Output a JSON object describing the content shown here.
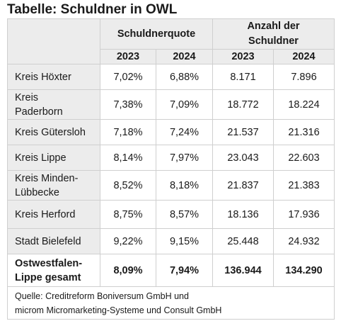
{
  "title": "Tabelle: Schuldner in OWL",
  "header": {
    "group_quote": "Schuldnerquote",
    "group_count_line1": "Anzahl der",
    "group_count_line2": "Schuldner",
    "years": [
      "2023",
      "2024",
      "2023",
      "2024"
    ]
  },
  "rows": [
    {
      "label_line1": "Kreis Höxter",
      "label_line2": "",
      "quote_2023": "7,02%",
      "quote_2024": "6,88%",
      "count_2023": "8.171",
      "count_2024": "7.896"
    },
    {
      "label_line1": "Kreis",
      "label_line2": "Paderborn",
      "quote_2023": "7,38%",
      "quote_2024": "7,09%",
      "count_2023": "18.772",
      "count_2024": "18.224"
    },
    {
      "label_line1": "Kreis Gütersloh",
      "label_line2": "",
      "quote_2023": "7,18%",
      "quote_2024": "7,24%",
      "count_2023": "21.537",
      "count_2024": "21.316"
    },
    {
      "label_line1": "Kreis Lippe",
      "label_line2": "",
      "quote_2023": "8,14%",
      "quote_2024": "7,97%",
      "count_2023": "23.043",
      "count_2024": "22.603"
    },
    {
      "label_line1": "Kreis Minden-",
      "label_line2": "Lübbecke",
      "quote_2023": "8,52%",
      "quote_2024": "8,18%",
      "count_2023": "21.837",
      "count_2024": "21.383"
    },
    {
      "label_line1": "Kreis Herford",
      "label_line2": "",
      "quote_2023": "8,75%",
      "quote_2024": "8,57%",
      "count_2023": "18.136",
      "count_2024": "17.936"
    },
    {
      "label_line1": "Stadt Bielefeld",
      "label_line2": "",
      "quote_2023": "9,22%",
      "quote_2024": "9,15%",
      "count_2023": "25.448",
      "count_2024": "24.932"
    }
  ],
  "total": {
    "label_line1": "Ostwestfalen-",
    "label_line2": "Lippe gesamt",
    "quote_2023": "8,09%",
    "quote_2024": "7,94%",
    "count_2023": "136.944",
    "count_2024": "134.290"
  },
  "source": {
    "line1": "Quelle: Creditreform Boniversum GmbH und",
    "line2": "microm Micromarketing-Systeme und Consult GmbH"
  }
}
